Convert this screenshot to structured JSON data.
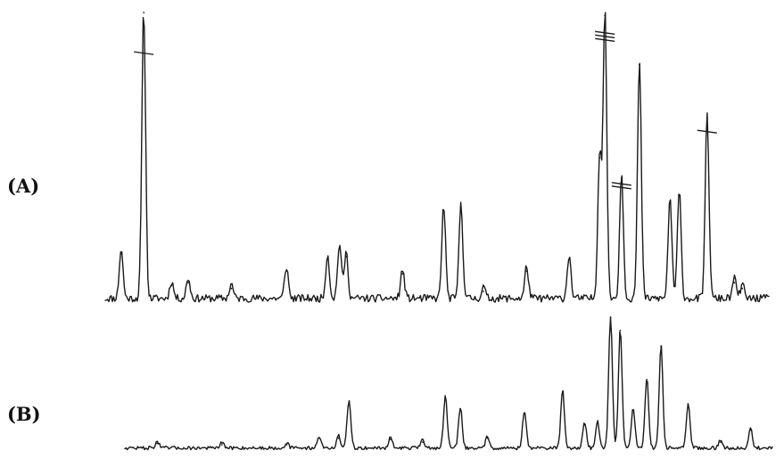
{
  "colors": {
    "background": "#ffffff",
    "trace": "#1a1a1a"
  },
  "chart_data": [
    {
      "type": "line",
      "panel_label": "(A)",
      "title": "",
      "xlabel": "",
      "ylabel": "",
      "axes_visible": false,
      "grid": false,
      "legend": "none",
      "xlim": [
        0,
        100
      ],
      "ylim": [
        0,
        100
      ],
      "series": [
        {
          "peaks": [
            {
              "x": 2.4,
              "y": 17
            },
            {
              "x": 5.8,
              "y": 100
            },
            {
              "x": 10.0,
              "y": 6
            },
            {
              "x": 12.5,
              "y": 7
            },
            {
              "x": 19.0,
              "y": 5
            },
            {
              "x": 27.3,
              "y": 11
            },
            {
              "x": 33.5,
              "y": 15
            },
            {
              "x": 35.3,
              "y": 19
            },
            {
              "x": 36.3,
              "y": 16
            },
            {
              "x": 44.8,
              "y": 10
            },
            {
              "x": 51.0,
              "y": 32
            },
            {
              "x": 53.6,
              "y": 33
            },
            {
              "x": 57.0,
              "y": 4
            },
            {
              "x": 63.5,
              "y": 11
            },
            {
              "x": 69.9,
              "y": 15
            },
            {
              "x": 74.5,
              "y": 50
            },
            {
              "x": 75.3,
              "y": 99
            },
            {
              "x": 77.8,
              "y": 43
            },
            {
              "x": 80.5,
              "y": 82
            },
            {
              "x": 85.1,
              "y": 35
            },
            {
              "x": 86.5,
              "y": 37
            },
            {
              "x": 90.7,
              "y": 64
            },
            {
              "x": 94.8,
              "y": 7
            },
            {
              "x": 96.0,
              "y": 5
            }
          ],
          "marker_ticks": [
            {
              "x": 5.8,
              "y": 86,
              "count": 1
            },
            {
              "x": 75.3,
              "y": 93,
              "count": 3
            },
            {
              "x": 77.8,
              "y": 41,
              "count": 2
            },
            {
              "x": 90.7,
              "y": 59,
              "count": 1
            }
          ]
        }
      ]
    },
    {
      "type": "line",
      "panel_label": "(B)",
      "title": "",
      "xlabel": "",
      "ylabel": "",
      "axes_visible": false,
      "grid": false,
      "legend": "none",
      "xlim": [
        0,
        100
      ],
      "ylim": [
        0,
        100
      ],
      "series": [
        {
          "peaks": [
            {
              "x": 5.0,
              "y": 5
            },
            {
              "x": 15.0,
              "y": 4
            },
            {
              "x": 25.0,
              "y": 4
            },
            {
              "x": 30.0,
              "y": 9
            },
            {
              "x": 33.0,
              "y": 9
            },
            {
              "x": 34.6,
              "y": 36
            },
            {
              "x": 41.0,
              "y": 8
            },
            {
              "x": 46.0,
              "y": 6
            },
            {
              "x": 49.5,
              "y": 39
            },
            {
              "x": 51.8,
              "y": 31
            },
            {
              "x": 56.0,
              "y": 9
            },
            {
              "x": 61.7,
              "y": 28
            },
            {
              "x": 67.6,
              "y": 44
            },
            {
              "x": 71.0,
              "y": 19
            },
            {
              "x": 73.0,
              "y": 20
            },
            {
              "x": 75.0,
              "y": 100
            },
            {
              "x": 76.5,
              "y": 90
            },
            {
              "x": 78.5,
              "y": 30
            },
            {
              "x": 80.6,
              "y": 53
            },
            {
              "x": 82.8,
              "y": 78
            },
            {
              "x": 87.0,
              "y": 33
            },
            {
              "x": 92.0,
              "y": 6
            },
            {
              "x": 96.6,
              "y": 15
            }
          ]
        }
      ]
    }
  ]
}
